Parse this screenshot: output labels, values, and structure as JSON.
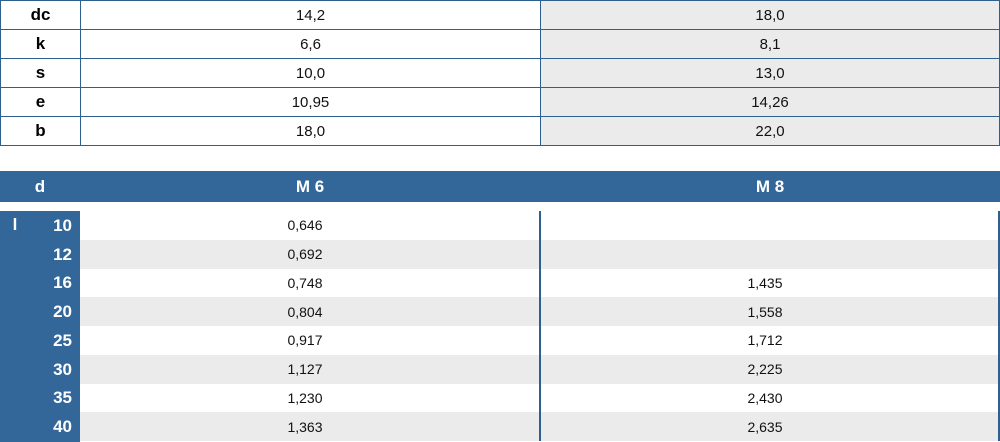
{
  "top_table": {
    "rows": [
      [
        "dc",
        "14,2",
        "18,0"
      ],
      [
        "k",
        "6,6",
        "8,1"
      ],
      [
        "s",
        "10,0",
        "13,0"
      ],
      [
        "e",
        "10,95",
        "14,26"
      ],
      [
        "b",
        "18,0",
        "22,0"
      ]
    ]
  },
  "header": [
    "d",
    "M 6",
    "M 8"
  ],
  "bottom_table": {
    "axis_label": "l",
    "rows": [
      [
        "10",
        "0,646",
        null
      ],
      [
        "12",
        "0,692",
        null
      ],
      [
        "16",
        "0,748",
        "1,435"
      ],
      [
        "20",
        "0,804",
        "1,558"
      ],
      [
        "25",
        "0,917",
        "1,712"
      ],
      [
        "30",
        "1,127",
        "2,225"
      ],
      [
        "35",
        "1,230",
        "2,430"
      ],
      [
        "40",
        "1,363",
        "2,635"
      ]
    ]
  }
}
